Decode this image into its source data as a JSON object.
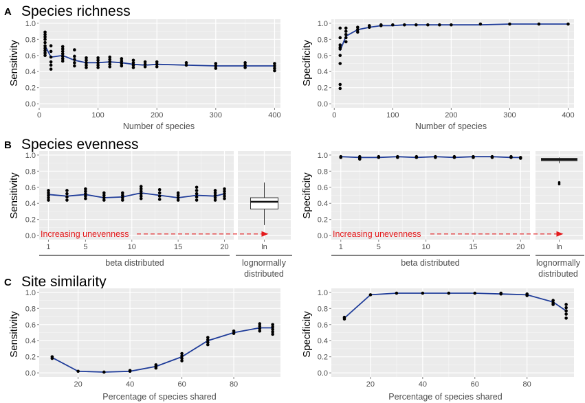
{
  "sections": [
    {
      "letter": "A",
      "title": "Species richness"
    },
    {
      "letter": "B",
      "title": "Species evenness"
    },
    {
      "letter": "C",
      "title": "Site similarity"
    }
  ],
  "colors": {
    "panel_bg": "#ebebeb",
    "grid": "#ffffff",
    "line": "#1f3c99",
    "point": "#000000",
    "arrow": "#e41a1c",
    "tick_text": "#4d4d4d"
  },
  "chart_data": [
    {
      "id": "A-sens",
      "type": "scatter",
      "ylabel": "Sensitivity",
      "xlabel": "Number of species",
      "xlim": [
        0,
        410
      ],
      "ylim": [
        -0.05,
        1.05
      ],
      "xticks": [
        0,
        100,
        200,
        300,
        400
      ],
      "yticks": [
        0.0,
        0.2,
        0.4,
        0.6,
        0.8,
        1.0
      ],
      "points": [
        [
          10,
          0.89
        ],
        [
          10,
          0.86
        ],
        [
          10,
          0.83
        ],
        [
          10,
          0.8
        ],
        [
          10,
          0.76
        ],
        [
          10,
          0.72
        ],
        [
          10,
          0.69
        ],
        [
          10,
          0.66
        ],
        [
          10,
          0.63
        ],
        [
          10,
          0.6
        ],
        [
          20,
          0.72
        ],
        [
          20,
          0.65
        ],
        [
          20,
          0.58
        ],
        [
          20,
          0.52
        ],
        [
          20,
          0.48
        ],
        [
          20,
          0.43
        ],
        [
          40,
          0.71
        ],
        [
          40,
          0.68
        ],
        [
          40,
          0.65
        ],
        [
          40,
          0.62
        ],
        [
          40,
          0.59
        ],
        [
          40,
          0.56
        ],
        [
          40,
          0.53
        ],
        [
          60,
          0.67
        ],
        [
          60,
          0.59
        ],
        [
          60,
          0.55
        ],
        [
          60,
          0.51
        ],
        [
          60,
          0.47
        ],
        [
          80,
          0.57
        ],
        [
          80,
          0.54
        ],
        [
          80,
          0.51
        ],
        [
          80,
          0.48
        ],
        [
          80,
          0.45
        ],
        [
          100,
          0.57
        ],
        [
          100,
          0.54
        ],
        [
          100,
          0.51
        ],
        [
          100,
          0.48
        ],
        [
          100,
          0.45
        ],
        [
          120,
          0.58
        ],
        [
          120,
          0.55
        ],
        [
          120,
          0.52
        ],
        [
          120,
          0.49
        ],
        [
          120,
          0.46
        ],
        [
          140,
          0.56
        ],
        [
          140,
          0.53
        ],
        [
          140,
          0.5
        ],
        [
          140,
          0.47
        ],
        [
          160,
          0.54
        ],
        [
          160,
          0.51
        ],
        [
          160,
          0.48
        ],
        [
          160,
          0.45
        ],
        [
          180,
          0.52
        ],
        [
          180,
          0.49
        ],
        [
          180,
          0.46
        ],
        [
          200,
          0.52
        ],
        [
          200,
          0.49
        ],
        [
          200,
          0.46
        ],
        [
          250,
          0.51
        ],
        [
          250,
          0.48
        ],
        [
          300,
          0.5
        ],
        [
          300,
          0.47
        ],
        [
          300,
          0.44
        ],
        [
          350,
          0.51
        ],
        [
          350,
          0.48
        ],
        [
          350,
          0.45
        ],
        [
          400,
          0.5
        ],
        [
          400,
          0.47
        ],
        [
          400,
          0.44
        ],
        [
          400,
          0.41
        ]
      ],
      "line": {
        "x": [
          10,
          20,
          40,
          60,
          80,
          100,
          120,
          140,
          160,
          180,
          200,
          250,
          300,
          350,
          400
        ],
        "y": [
          0.72,
          0.58,
          0.6,
          0.54,
          0.51,
          0.51,
          0.52,
          0.51,
          0.49,
          0.48,
          0.49,
          0.48,
          0.47,
          0.47,
          0.47
        ]
      }
    },
    {
      "id": "A-spec",
      "type": "scatter",
      "ylabel": "Specificity",
      "xlabel": "Number of species",
      "xlim": [
        -5,
        410
      ],
      "ylim": [
        -0.05,
        1.05
      ],
      "xticks": [
        0,
        100,
        200,
        300,
        400
      ],
      "yticks": [
        0.0,
        0.2,
        0.4,
        0.6,
        0.8,
        1.0
      ],
      "points": [
        [
          10,
          0.94
        ],
        [
          10,
          0.82
        ],
        [
          10,
          0.73
        ],
        [
          10,
          0.7
        ],
        [
          10,
          0.68
        ],
        [
          10,
          0.6
        ],
        [
          10,
          0.5
        ],
        [
          10,
          0.24
        ],
        [
          10,
          0.19
        ],
        [
          20,
          0.94
        ],
        [
          20,
          0.9
        ],
        [
          20,
          0.86
        ],
        [
          20,
          0.82
        ],
        [
          20,
          0.77
        ],
        [
          40,
          0.95
        ],
        [
          40,
          0.92
        ],
        [
          40,
          0.89
        ],
        [
          60,
          0.97
        ],
        [
          60,
          0.95
        ],
        [
          80,
          0.98
        ],
        [
          80,
          0.97
        ],
        [
          100,
          0.98
        ],
        [
          120,
          0.98
        ],
        [
          140,
          0.98
        ],
        [
          160,
          0.98
        ],
        [
          180,
          0.98
        ],
        [
          200,
          0.98
        ],
        [
          250,
          0.99
        ],
        [
          300,
          0.99
        ],
        [
          350,
          0.99
        ],
        [
          400,
          0.99
        ]
      ],
      "line": {
        "x": [
          10,
          20,
          40,
          60,
          80,
          100,
          120,
          140,
          160,
          180,
          200,
          250,
          300,
          350,
          400
        ],
        "y": [
          0.66,
          0.84,
          0.92,
          0.95,
          0.97,
          0.97,
          0.98,
          0.98,
          0.98,
          0.98,
          0.98,
          0.98,
          0.99,
          0.99,
          0.99
        ]
      }
    },
    {
      "id": "B-sens",
      "type": "scatter",
      "ylabel": "Sensitivity",
      "group_label": "beta distributed",
      "xlim": [
        0,
        21
      ],
      "ylim": [
        -0.05,
        1.05
      ],
      "xticks": [
        1,
        5,
        10,
        15,
        20
      ],
      "yticks": [
        0.0,
        0.2,
        0.4,
        0.6,
        0.8,
        1.0
      ],
      "points": [
        [
          1,
          0.56
        ],
        [
          1,
          0.53
        ],
        [
          1,
          0.5
        ],
        [
          1,
          0.47
        ],
        [
          1,
          0.44
        ],
        [
          3,
          0.56
        ],
        [
          3,
          0.52
        ],
        [
          3,
          0.48
        ],
        [
          3,
          0.44
        ],
        [
          5,
          0.58
        ],
        [
          5,
          0.55
        ],
        [
          5,
          0.52
        ],
        [
          5,
          0.49
        ],
        [
          5,
          0.46
        ],
        [
          7,
          0.53
        ],
        [
          7,
          0.5
        ],
        [
          7,
          0.47
        ],
        [
          7,
          0.44
        ],
        [
          9,
          0.53
        ],
        [
          9,
          0.5
        ],
        [
          9,
          0.47
        ],
        [
          9,
          0.44
        ],
        [
          11,
          0.61
        ],
        [
          11,
          0.58
        ],
        [
          11,
          0.55
        ],
        [
          11,
          0.52
        ],
        [
          11,
          0.49
        ],
        [
          11,
          0.46
        ],
        [
          13,
          0.57
        ],
        [
          13,
          0.53
        ],
        [
          13,
          0.49
        ],
        [
          13,
          0.45
        ],
        [
          15,
          0.53
        ],
        [
          15,
          0.5
        ],
        [
          15,
          0.47
        ],
        [
          15,
          0.44
        ],
        [
          17,
          0.6
        ],
        [
          17,
          0.56
        ],
        [
          17,
          0.52
        ],
        [
          17,
          0.48
        ],
        [
          17,
          0.44
        ],
        [
          19,
          0.56
        ],
        [
          19,
          0.53
        ],
        [
          19,
          0.5
        ],
        [
          19,
          0.47
        ],
        [
          19,
          0.44
        ],
        [
          20,
          0.58
        ],
        [
          20,
          0.55
        ],
        [
          20,
          0.52
        ],
        [
          20,
          0.49
        ],
        [
          20,
          0.46
        ]
      ],
      "line": {
        "x": [
          1,
          3,
          5,
          7,
          9,
          11,
          13,
          15,
          17,
          19,
          20
        ],
        "y": [
          0.51,
          0.49,
          0.51,
          0.47,
          0.48,
          0.53,
          0.5,
          0.47,
          0.5,
          0.49,
          0.52
        ]
      },
      "box": {
        "label": "ln",
        "group_label": "lognormally distributed",
        "min": 0.13,
        "q1": 0.33,
        "median": 0.42,
        "q3": 0.47,
        "max": 0.66
      },
      "arrow_label": "Increasing unevenness"
    },
    {
      "id": "B-spec",
      "type": "scatter",
      "ylabel": "Specificity",
      "group_label": "beta distributed",
      "xlim": [
        0,
        21
      ],
      "ylim": [
        -0.05,
        1.05
      ],
      "xticks": [
        1,
        5,
        10,
        15,
        20
      ],
      "yticks": [
        0.0,
        0.2,
        0.4,
        0.6,
        0.8,
        1.0
      ],
      "points": [
        [
          1,
          0.98
        ],
        [
          1,
          0.97
        ],
        [
          3,
          0.98
        ],
        [
          3,
          0.96
        ],
        [
          3,
          0.95
        ],
        [
          5,
          0.98
        ],
        [
          5,
          0.97
        ],
        [
          7,
          0.98
        ],
        [
          7,
          0.97
        ],
        [
          9,
          0.98
        ],
        [
          9,
          0.97
        ],
        [
          11,
          0.98
        ],
        [
          11,
          0.97
        ],
        [
          13,
          0.98
        ],
        [
          13,
          0.97
        ],
        [
          15,
          0.98
        ],
        [
          15,
          0.97
        ],
        [
          17,
          0.98
        ],
        [
          17,
          0.97
        ],
        [
          19,
          0.98
        ],
        [
          19,
          0.97
        ],
        [
          20,
          0.97
        ],
        [
          20,
          0.96
        ]
      ],
      "line": {
        "x": [
          1,
          3,
          5,
          7,
          9,
          11,
          13,
          15,
          17,
          19,
          20
        ],
        "y": [
          0.98,
          0.97,
          0.97,
          0.98,
          0.97,
          0.98,
          0.97,
          0.98,
          0.98,
          0.97,
          0.97
        ]
      },
      "box": {
        "label": "ln",
        "group_label": "lognormally distributed",
        "min": 0.9,
        "q1": 0.93,
        "median": 0.945,
        "q3": 0.96,
        "max": 0.97,
        "outliers": [
          0.66,
          0.64
        ]
      },
      "arrow_label": "Increasing unevenness"
    },
    {
      "id": "C-sens",
      "type": "scatter",
      "ylabel": "Sensitivity",
      "xlabel": "Percentage of species shared",
      "xlim": [
        5,
        98
      ],
      "ylim": [
        -0.05,
        1.05
      ],
      "xticks": [
        20,
        40,
        60,
        80
      ],
      "yticks": [
        0.0,
        0.2,
        0.4,
        0.6,
        0.8,
        1.0
      ],
      "points": [
        [
          10,
          0.2
        ],
        [
          10,
          0.18
        ],
        [
          20,
          0.02
        ],
        [
          30,
          0.01
        ],
        [
          40,
          0.03
        ],
        [
          40,
          0.02
        ],
        [
          50,
          0.1
        ],
        [
          50,
          0.08
        ],
        [
          50,
          0.06
        ],
        [
          60,
          0.24
        ],
        [
          60,
          0.21
        ],
        [
          60,
          0.18
        ],
        [
          60,
          0.15
        ],
        [
          70,
          0.44
        ],
        [
          70,
          0.41
        ],
        [
          70,
          0.38
        ],
        [
          70,
          0.35
        ],
        [
          80,
          0.52
        ],
        [
          80,
          0.49
        ],
        [
          90,
          0.61
        ],
        [
          90,
          0.58
        ],
        [
          90,
          0.55
        ],
        [
          90,
          0.52
        ],
        [
          95,
          0.6
        ],
        [
          95,
          0.57
        ],
        [
          95,
          0.54
        ],
        [
          95,
          0.51
        ],
        [
          95,
          0.48
        ]
      ],
      "line": {
        "x": [
          10,
          20,
          30,
          40,
          50,
          60,
          70,
          80,
          90,
          95
        ],
        "y": [
          0.19,
          0.02,
          0.01,
          0.02,
          0.08,
          0.2,
          0.4,
          0.5,
          0.56,
          0.56
        ]
      }
    },
    {
      "id": "C-spec",
      "type": "scatter",
      "ylabel": "Specificity",
      "xlabel": "Percentage of species shared",
      "xlim": [
        5,
        98
      ],
      "ylim": [
        -0.05,
        1.05
      ],
      "xticks": [
        20,
        40,
        60,
        80
      ],
      "yticks": [
        0.0,
        0.2,
        0.4,
        0.6,
        0.8,
        1.0
      ],
      "points": [
        [
          10,
          0.69
        ],
        [
          10,
          0.67
        ],
        [
          20,
          0.97
        ],
        [
          30,
          0.99
        ],
        [
          40,
          0.99
        ],
        [
          50,
          0.99
        ],
        [
          60,
          0.99
        ],
        [
          70,
          0.99
        ],
        [
          70,
          0.98
        ],
        [
          80,
          0.98
        ],
        [
          80,
          0.96
        ],
        [
          90,
          0.9
        ],
        [
          90,
          0.87
        ],
        [
          90,
          0.85
        ],
        [
          95,
          0.85
        ],
        [
          95,
          0.81
        ],
        [
          95,
          0.77
        ],
        [
          95,
          0.73
        ],
        [
          95,
          0.68
        ]
      ],
      "line": {
        "x": [
          10,
          20,
          30,
          40,
          50,
          60,
          70,
          80,
          90,
          95
        ],
        "y": [
          0.68,
          0.97,
          0.99,
          0.99,
          0.99,
          0.99,
          0.98,
          0.97,
          0.88,
          0.77
        ]
      }
    }
  ]
}
